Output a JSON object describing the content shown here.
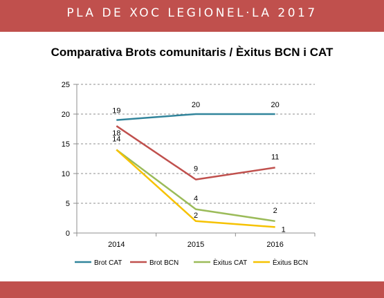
{
  "header": {
    "title": "PLA DE XOC LEGIONEL·LA 2017"
  },
  "colors": {
    "brand": "#c0504d",
    "brot_cat": "#31849b",
    "brot_bcn": "#c0504d",
    "exitus_cat": "#9bbb59",
    "exitus_bcn": "#f6c200"
  },
  "chart_data": {
    "type": "line",
    "title": "Comparativa Brots comunitaris / Èxitus BCN i CAT",
    "xlabel": "",
    "ylabel": "",
    "categories": [
      "2014",
      "2015",
      "2016"
    ],
    "ylim": [
      0,
      25
    ],
    "yticks": [
      0,
      5,
      10,
      15,
      20,
      25
    ],
    "grid": true,
    "legend": "bottom",
    "series": [
      {
        "name": "Brot CAT",
        "values": [
          19,
          20,
          20
        ],
        "color": "#31849b",
        "labels": [
          "19",
          "20",
          "20"
        ]
      },
      {
        "name": "Brot BCN",
        "values": [
          18,
          9,
          11
        ],
        "color": "#c0504d",
        "labels": [
          "18",
          "9",
          "11"
        ]
      },
      {
        "name": "Èxitus CAT",
        "values": [
          14,
          4,
          2
        ],
        "color": "#9bbb59",
        "labels": [
          "14",
          "4",
          "2"
        ]
      },
      {
        "name": "Èxitus BCN",
        "values": [
          14,
          2,
          1
        ],
        "color": "#f6c200",
        "labels": [
          "",
          "2",
          "1"
        ]
      }
    ]
  }
}
